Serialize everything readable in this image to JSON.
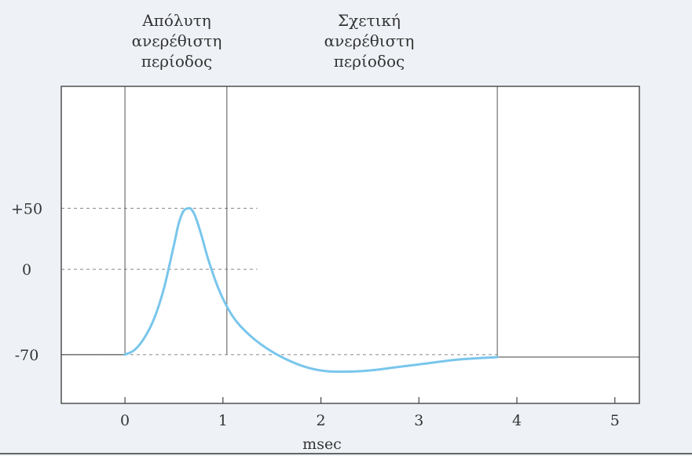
{
  "chart_data": {
    "type": "line",
    "xlabel": "msec",
    "ylabel": "",
    "title": "",
    "xlim": [
      -0.65,
      5.25
    ],
    "ylim": [
      -110,
      150
    ],
    "x_ticks": [
      {
        "value": 0,
        "label": "0"
      },
      {
        "value": 1,
        "label": "1"
      },
      {
        "value": 2,
        "label": "2"
      },
      {
        "value": 3,
        "label": "3"
      },
      {
        "value": 4,
        "label": "4"
      },
      {
        "value": 5,
        "label": "5"
      }
    ],
    "y_ticks": [
      {
        "value": 50,
        "label": "+50"
      },
      {
        "value": 0,
        "label": "0"
      },
      {
        "value": -70,
        "label": "-70"
      }
    ],
    "reference_lines": [
      50,
      0,
      -70
    ],
    "period_boundaries": [
      0,
      1.04,
      3.8
    ],
    "period_labels": [
      {
        "lines": [
          "Απόλυτη",
          "ανερέθιστη",
          "περίοδος"
        ]
      },
      {
        "lines": [
          "Σχετική",
          "ανερέθιστη",
          "περίοδος"
        ]
      }
    ],
    "series": [
      {
        "color": "#79c6ec",
        "x": [
          -0.65,
          0.0,
          0.1,
          0.2,
          0.3,
          0.4,
          0.5,
          0.55,
          0.6,
          0.65,
          0.68,
          0.72,
          0.78,
          0.85,
          0.95,
          1.05,
          1.15,
          1.3,
          1.45,
          1.6,
          1.8,
          2.0,
          2.2,
          2.5,
          2.8,
          3.1,
          3.4,
          3.8,
          5.25
        ],
        "y": [
          -70,
          -70,
          -66,
          -56,
          -40,
          -15,
          20,
          38,
          48,
          50,
          49,
          43,
          28,
          8,
          -15,
          -32,
          -44,
          -56,
          -65,
          -72,
          -79,
          -83,
          -84,
          -83,
          -80,
          -77,
          -74,
          -72,
          -72
        ]
      }
    ]
  }
}
